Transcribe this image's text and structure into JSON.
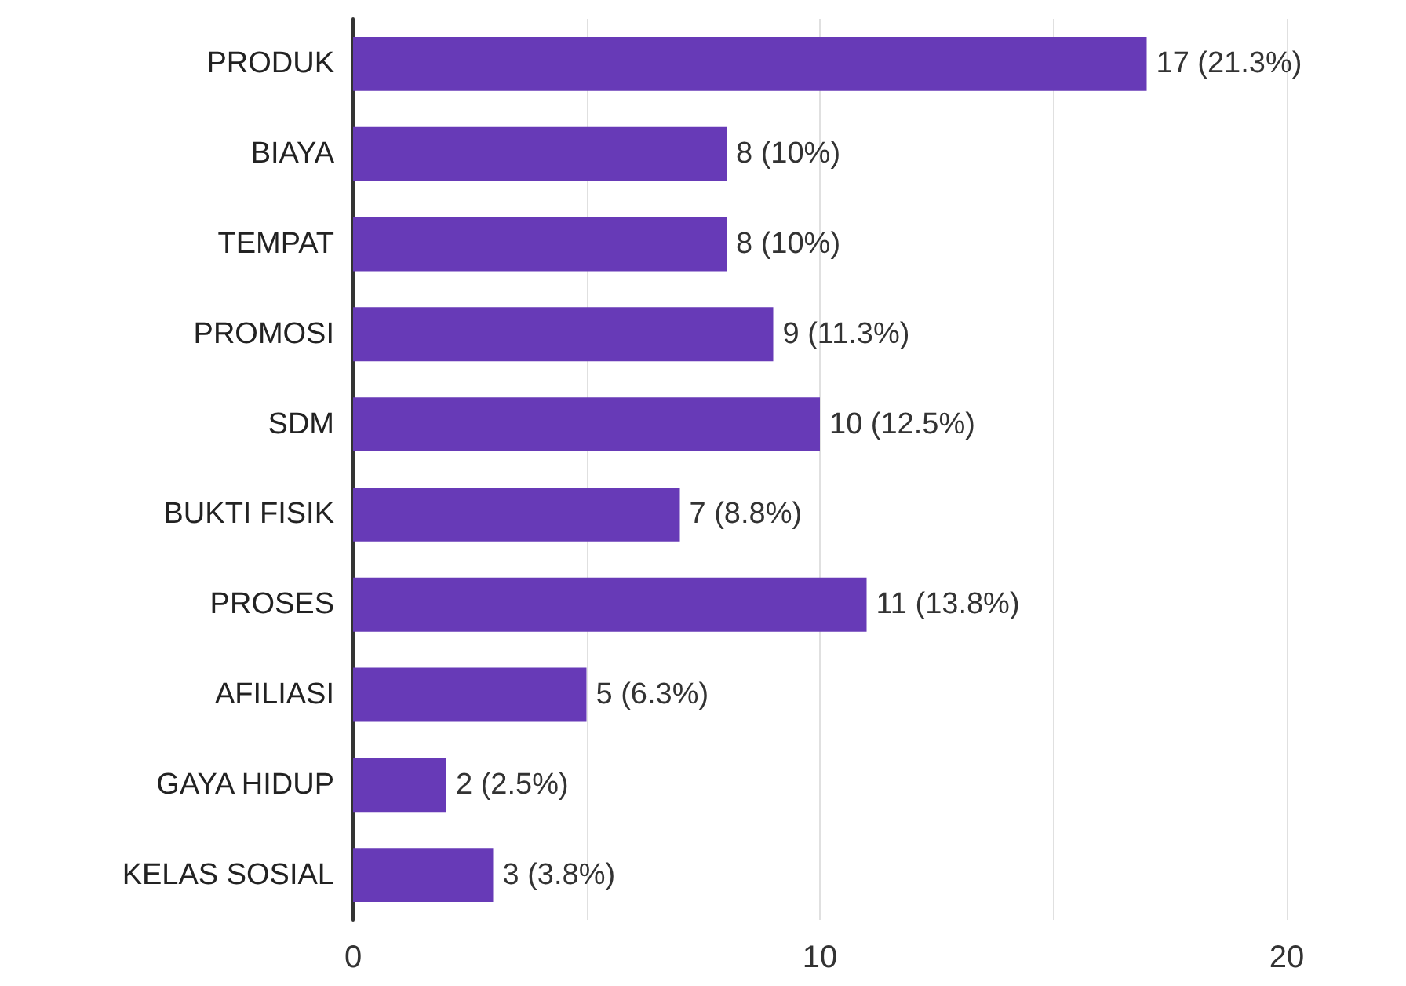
{
  "chart_data": {
    "type": "bar",
    "orientation": "horizontal",
    "categories": [
      "PRODUK",
      "BIAYA",
      "TEMPAT",
      "PROMOSI",
      "SDM",
      "BUKTI FISIK",
      "PROSES",
      "AFILIASI",
      "GAYA HIDUP",
      "KELAS SOSIAL"
    ],
    "values": [
      17,
      8,
      8,
      9,
      10,
      7,
      11,
      5,
      2,
      3
    ],
    "value_labels": [
      "17 (21.3%)",
      "8 (10%)",
      "8 (10%)",
      "9 (11.3%)",
      "10 (12.5%)",
      "7 (8.8%)",
      "11 (13.8%)",
      "5 (6.3%)",
      "2 (2.5%)",
      "3 (3.8%)"
    ],
    "color": "#673ab7",
    "xlim": [
      0,
      20
    ],
    "xticks": [
      0,
      {
        "value": 5,
        "label": null
      },
      10,
      {
        "value": 15,
        "label": null
      },
      20
    ],
    "grid": "x"
  }
}
